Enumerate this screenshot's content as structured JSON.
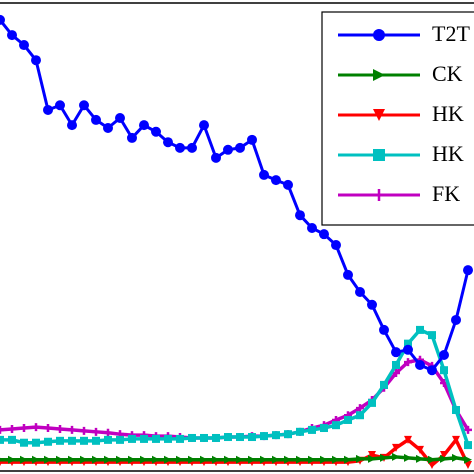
{
  "chart_data": {
    "type": "line",
    "x": [
      0,
      12,
      24,
      36,
      48,
      60,
      72,
      84,
      96,
      108,
      120,
      132,
      144,
      156,
      168,
      180,
      192,
      204,
      216,
      228,
      240,
      252,
      264,
      276,
      288,
      300,
      312,
      324,
      336,
      348,
      360,
      372,
      384,
      396,
      408,
      420,
      432,
      444,
      456,
      468
    ],
    "xlim": [
      0,
      474
    ],
    "ylim": [
      0,
      100
    ],
    "series": [
      {
        "name": "T2T",
        "color": "#0000ff",
        "marker": "circle",
        "values": [
          95.8,
          92.6,
          90.5,
          87.3,
          76.8,
          77.8,
          73.6,
          77.8,
          74.7,
          73.0,
          75.1,
          70.9,
          73.6,
          72.2,
          70.0,
          68.8,
          68.8,
          73.6,
          66.7,
          68.4,
          68.8,
          70.5,
          63.1,
          62.0,
          61.0,
          54.6,
          51.9,
          50.6,
          48.3,
          42.0,
          38.4,
          35.7,
          30.4,
          25.7,
          26.2,
          23.0,
          21.9,
          25.1,
          32.5,
          43.0
        ]
      },
      {
        "name": "CK",
        "color": "#008000",
        "marker": "triangle-right",
        "values": [
          3.0,
          3.0,
          3.0,
          3.0,
          3.0,
          3.0,
          3.0,
          3.0,
          3.0,
          3.0,
          3.0,
          3.0,
          3.0,
          3.0,
          3.0,
          3.0,
          3.0,
          3.0,
          3.0,
          3.0,
          3.0,
          3.0,
          3.0,
          3.0,
          3.0,
          3.0,
          3.0,
          3.0,
          3.0,
          3.0,
          3.2,
          3.2,
          3.4,
          3.6,
          3.4,
          3.2,
          3.0,
          3.2,
          3.4,
          3.0
        ]
      },
      {
        "name": "HK",
        "color": "#ff0000",
        "marker": "triangle-down",
        "values": [
          2.5,
          2.5,
          2.5,
          2.5,
          2.5,
          2.5,
          2.5,
          2.5,
          2.5,
          2.5,
          2.5,
          2.5,
          2.5,
          2.5,
          2.5,
          2.5,
          2.5,
          2.5,
          2.5,
          2.5,
          2.5,
          2.5,
          2.5,
          2.5,
          2.5,
          2.5,
          2.5,
          2.5,
          2.5,
          2.5,
          2.8,
          4.0,
          3.4,
          5.5,
          7.2,
          5.1,
          1.9,
          4.0,
          7.2,
          1.9
        ]
      },
      {
        "name": "HK",
        "color": "#00c0c0",
        "marker": "square",
        "values": [
          7.2,
          7.2,
          6.6,
          6.6,
          6.8,
          7.0,
          7.0,
          7.0,
          7.0,
          7.2,
          7.2,
          7.4,
          7.4,
          7.4,
          7.4,
          7.4,
          7.6,
          7.6,
          7.6,
          7.8,
          7.8,
          7.8,
          8.0,
          8.2,
          8.4,
          8.9,
          9.3,
          9.7,
          10.3,
          11.4,
          12.4,
          15.0,
          18.8,
          23.0,
          27.5,
          30.4,
          29.3,
          21.9,
          13.5,
          6.1
        ]
      },
      {
        "name": "FK",
        "color": "#c000c0",
        "marker": "plus",
        "values": [
          9.3,
          9.5,
          9.7,
          9.9,
          9.7,
          9.5,
          9.3,
          9.1,
          8.9,
          8.7,
          8.4,
          8.2,
          8.2,
          8.0,
          8.0,
          7.8,
          7.6,
          7.6,
          7.6,
          7.8,
          7.8,
          8.0,
          8.0,
          8.2,
          8.4,
          8.9,
          9.7,
          10.3,
          11.4,
          12.4,
          13.9,
          15.6,
          18.2,
          21.3,
          23.6,
          24.1,
          22.8,
          19.2,
          13.5,
          9.3
        ]
      }
    ]
  }
}
